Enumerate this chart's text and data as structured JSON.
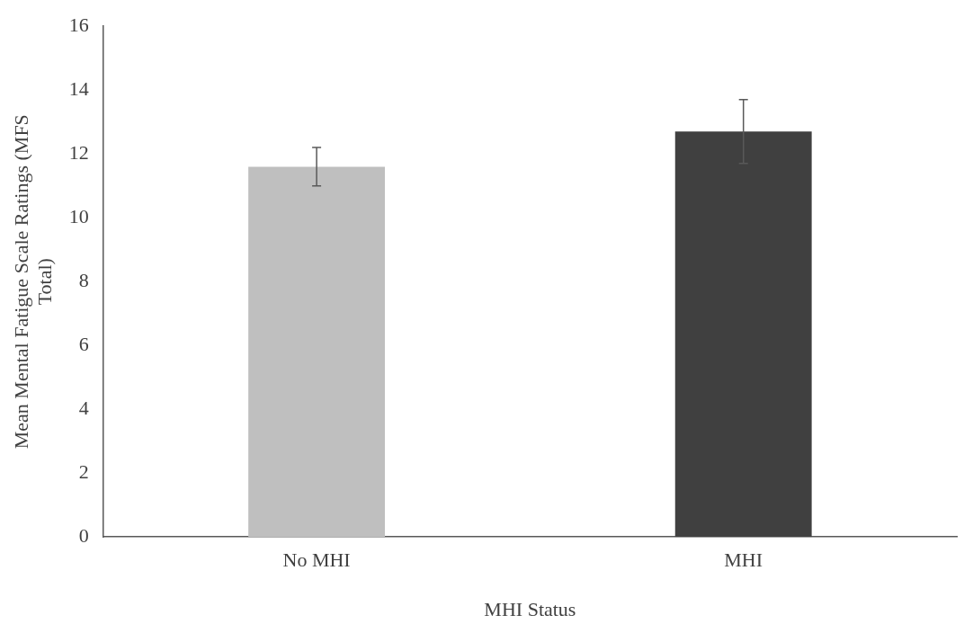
{
  "chart_data": {
    "type": "bar",
    "xlabel": "MHI Status",
    "ylabel": "Mean Mental Fatigue Scale Ratings (MFS Total)",
    "categories": [
      "No MHI",
      "MHI"
    ],
    "values": [
      11.6,
      12.7
    ],
    "colors": [
      "#bfbfbf",
      "#404040"
    ],
    "errors": [
      0.6,
      1.0
    ],
    "ylim": [
      0,
      16
    ],
    "yticks": [
      0,
      2,
      4,
      6,
      8,
      10,
      12,
      14,
      16
    ],
    "grid": false,
    "legend": false
  }
}
